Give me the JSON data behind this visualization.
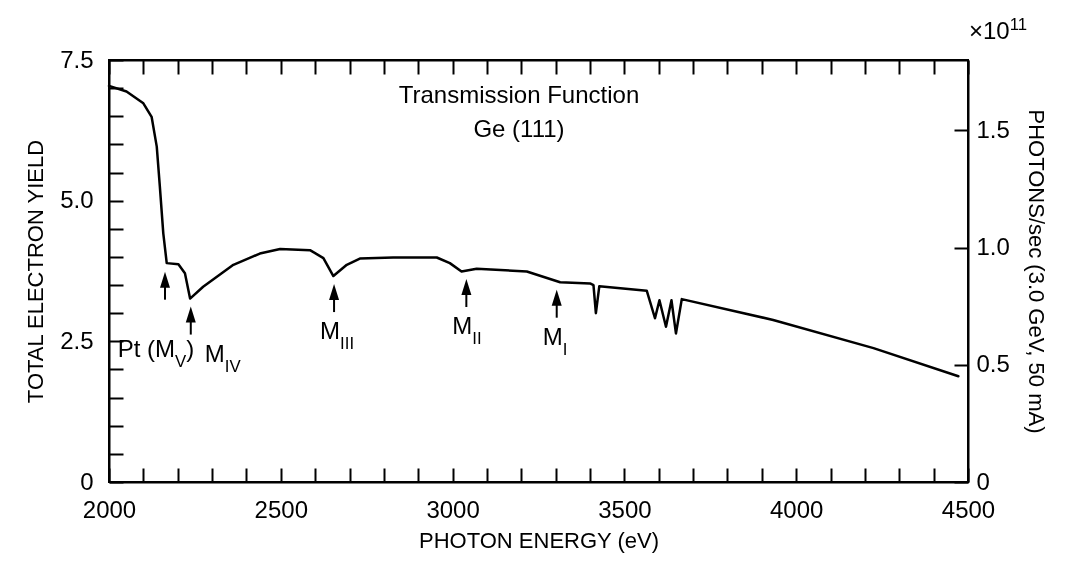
{
  "chart_data": {
    "type": "line",
    "title": "Transmission Function",
    "subtitle": "Ge (111)",
    "xlabel": "PHOTON ENERGY   (eV)",
    "ylabel": "TOTAL ELECTRON YIELD",
    "y2label": "PHOTONS/sec   (3.0 GeV, 50 mA)",
    "x": [
      2000,
      2051,
      2100,
      2124,
      2139,
      2148,
      2158,
      2168,
      2202,
      2221,
      2236,
      2274,
      2362,
      2439,
      2498,
      2585,
      2624,
      2653,
      2692,
      2730,
      2827,
      2954,
      2992,
      3026,
      3070,
      3216,
      3313,
      3400,
      3410,
      3417,
      3427,
      3565,
      3589,
      3602,
      3621,
      3637,
      3650,
      3667,
      3933,
      4225,
      4472
    ],
    "series": [
      {
        "color": "#000000",
        "values": [
          7.04,
          6.94,
          6.73,
          6.49,
          5.96,
          5.25,
          4.42,
          3.89,
          3.87,
          3.71,
          3.26,
          3.47,
          3.86,
          4.06,
          4.14,
          4.12,
          3.98,
          3.66,
          3.86,
          3.97,
          3.99,
          3.99,
          3.89,
          3.74,
          3.79,
          3.74,
          3.55,
          3.53,
          3.5,
          3.0,
          3.48,
          3.4,
          2.91,
          3.23,
          2.76,
          3.23,
          2.64,
          3.25,
          2.88,
          2.38,
          1.88
        ]
      }
    ],
    "xlim": [
      2000,
      4500
    ],
    "xticks": [
      2000,
      {
        "value": 2100,
        "label": null
      },
      {
        "value": 2200,
        "label": null
      },
      {
        "value": 2300,
        "label": null
      },
      {
        "value": 2400,
        "label": null
      },
      2500,
      {
        "value": 2600,
        "label": null
      },
      {
        "value": 2700,
        "label": null
      },
      {
        "value": 2800,
        "label": null
      },
      {
        "value": 2900,
        "label": null
      },
      3000,
      {
        "value": 3100,
        "label": null
      },
      {
        "value": 3200,
        "label": null
      },
      {
        "value": 3300,
        "label": null
      },
      {
        "value": 3400,
        "label": null
      },
      3500,
      {
        "value": 3600,
        "label": null
      },
      {
        "value": 3700,
        "label": null
      },
      {
        "value": 3800,
        "label": null
      },
      {
        "value": 3900,
        "label": null
      },
      4000,
      {
        "value": 4100,
        "label": null
      },
      {
        "value": 4200,
        "label": null
      },
      {
        "value": 4300,
        "label": null
      },
      {
        "value": 4400,
        "label": null
      },
      4500
    ],
    "ylim": [
      0,
      7.5
    ],
    "yticks": [
      0,
      {
        "value": 0.5,
        "label": null
      },
      {
        "value": 1,
        "label": null
      },
      {
        "value": 1.5,
        "label": null
      },
      {
        "value": 2,
        "label": null
      },
      2.5,
      {
        "value": 3,
        "label": null
      },
      {
        "value": 3.5,
        "label": null
      },
      {
        "value": 4,
        "label": null
      },
      {
        "value": 4.5,
        "label": null
      },
      {
        "value": 5,
        "label": "5.0"
      },
      {
        "value": 5.5,
        "label": null
      },
      {
        "value": 6,
        "label": null
      },
      {
        "value": 6.5,
        "label": null
      },
      {
        "value": 7,
        "label": null
      },
      7.5
    ],
    "y2lim": [
      0,
      1.8
    ],
    "y2ticks": [
      0,
      0.5,
      {
        "value": 1,
        "label": "1.0"
      },
      1.5
    ],
    "annotations": [
      {
        "text": "Pt (M$_{V}$)",
        "x": 2163,
        "y": 3.88
      },
      {
        "text": "M$_{IV}$",
        "x": 2238,
        "y": 3.26
      },
      {
        "text": "M$_{III}$",
        "x": 2655,
        "y": 3.66
      },
      {
        "text": "M$_{II}$",
        "x": 3040,
        "y": 3.75
      },
      {
        "text": "M$_{I}$",
        "x": 3303,
        "y": 3.56
      },
      "×10$^{11}$"
    ]
  }
}
